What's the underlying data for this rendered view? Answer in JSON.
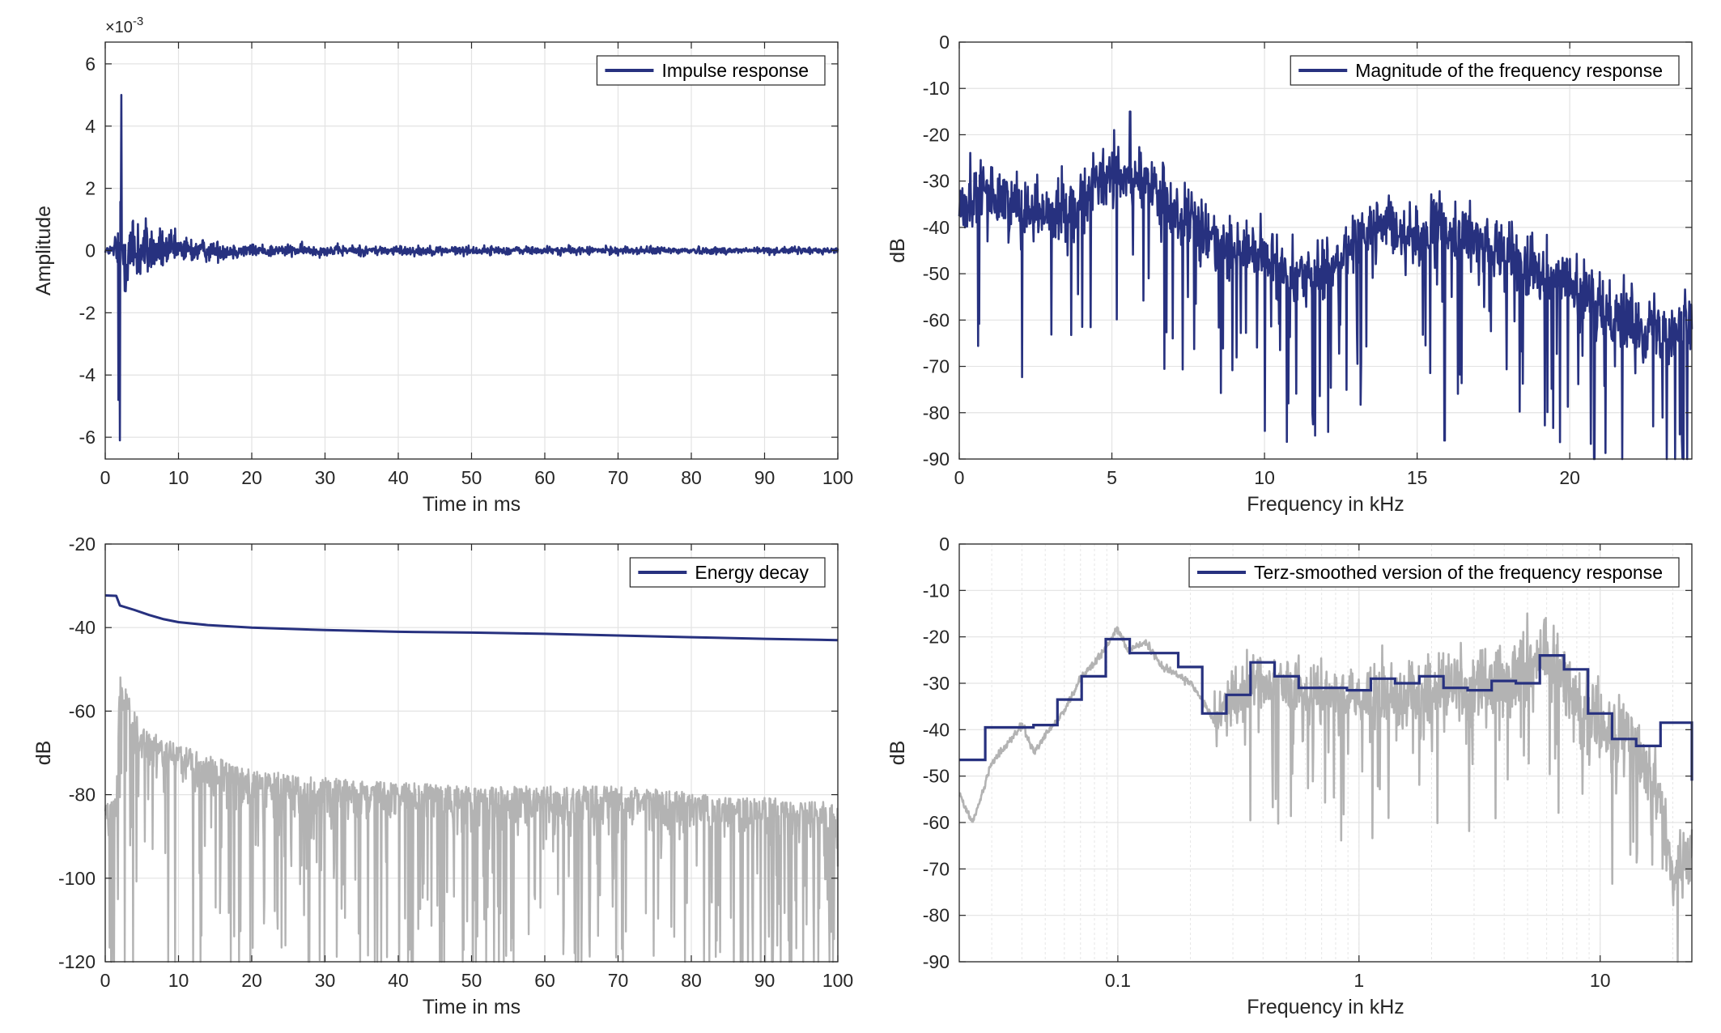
{
  "colors": {
    "series": "#27317f",
    "background_trace": "#b3b3b3",
    "grid": "#e3e3e3",
    "axis": "#262626"
  },
  "chart_data": [
    {
      "id": "impulse",
      "type": "line",
      "xlabel": "Time in ms",
      "ylabel": "Amplitude",
      "exponent_label": "×10",
      "exponent_power": "-3",
      "xlim": [
        0,
        100
      ],
      "ylim": [
        -6.7,
        6.7
      ],
      "xticks": [
        0,
        10,
        20,
        30,
        40,
        50,
        60,
        70,
        80,
        90,
        100
      ],
      "yticks": [
        -6,
        -4,
        -2,
        0,
        2,
        4,
        6
      ],
      "ytick_labels": [
        "-6",
        "-4",
        "-2",
        "0",
        "2",
        "4",
        "6"
      ],
      "grid": true,
      "legend_position": "top-right",
      "series": [
        {
          "name": "Impulse response",
          "style": "noise",
          "envelope_x": [
            0,
            1.0,
            1.5,
            2,
            2.5,
            3,
            4,
            5,
            6,
            8,
            10,
            12,
            15,
            20,
            30,
            50,
            100
          ],
          "envelope_y": [
            0.15,
            0.3,
            1.0,
            5.0,
            2.5,
            2.0,
            1.8,
            1.6,
            1.2,
            0.9,
            0.7,
            0.6,
            0.45,
            0.3,
            0.25,
            0.2,
            0.15
          ],
          "notable_points": [
            {
              "x": 2.2,
              "y": 5.0
            },
            {
              "x": 2.0,
              "y": -6.1
            },
            {
              "x": 1.8,
              "y": -4.8
            }
          ]
        }
      ]
    },
    {
      "id": "magnitude",
      "type": "line",
      "xlabel": "Frequency in kHz",
      "ylabel": "dB",
      "xlim": [
        0,
        24
      ],
      "ylim": [
        -90,
        0
      ],
      "xticks": [
        0,
        5,
        10,
        15,
        20
      ],
      "yticks": [
        -90,
        -80,
        -70,
        -60,
        -50,
        -40,
        -30,
        -20,
        -10,
        0
      ],
      "grid": true,
      "legend_position": "top-right",
      "series": [
        {
          "name": "Magnitude of the frequency response",
          "style": "noise",
          "mean_x": [
            0,
            1,
            2,
            3,
            4,
            5,
            6,
            7,
            8,
            9,
            10,
            11,
            12,
            13,
            14,
            15,
            16,
            17,
            18,
            19,
            20,
            21,
            22,
            23,
            24
          ],
          "mean_y": [
            -35,
            -33,
            -35,
            -37,
            -34,
            -28,
            -30,
            -36,
            -42,
            -44,
            -47,
            -50,
            -50,
            -42,
            -40,
            -42,
            -40,
            -43,
            -47,
            -48,
            -52,
            -58,
            -60,
            -62,
            -61
          ],
          "notable_points": [
            {
              "x": 5.6,
              "y": -15
            },
            {
              "x": 15.9,
              "y": -86
            },
            {
              "x": 20.8,
              "y": -90
            }
          ]
        }
      ]
    },
    {
      "id": "energy",
      "type": "line",
      "xlabel": "Time in ms",
      "ylabel": "dB",
      "xlim": [
        0,
        100
      ],
      "ylim": [
        -120,
        -20
      ],
      "xticks": [
        0,
        10,
        20,
        30,
        40,
        50,
        60,
        70,
        80,
        90,
        100
      ],
      "yticks": [
        -120,
        -100,
        -80,
        -60,
        -40,
        -20
      ],
      "grid": true,
      "legend_position": "top-right",
      "series": [
        {
          "name": "Energy decay",
          "x": [
            0,
            1.5,
            2,
            4,
            6,
            8,
            10,
            14,
            20,
            30,
            40,
            50,
            60,
            70,
            80,
            90,
            100
          ],
          "y": [
            -32.3,
            -32.4,
            -34.7,
            -35.8,
            -37.0,
            -38.0,
            -38.7,
            -39.4,
            -40.0,
            -40.6,
            -41.0,
            -41.2,
            -41.5,
            -41.9,
            -42.3,
            -42.7,
            -43.0
          ]
        },
        {
          "role": "background",
          "style": "noise",
          "envelope_x": [
            0,
            1.5,
            2,
            5,
            10,
            20,
            30,
            50,
            70,
            100
          ],
          "envelope_y": [
            -76,
            -75,
            -45,
            -58,
            -62,
            -68,
            -70,
            -72,
            -72,
            -76
          ]
        }
      ]
    },
    {
      "id": "terz",
      "type": "line",
      "xlabel": "Frequency in kHz",
      "ylabel": "dB",
      "xscale": "log",
      "xlim": [
        0.022,
        24
      ],
      "ylim": [
        -90,
        0
      ],
      "xticks": [
        0.1,
        1,
        10
      ],
      "xtick_labels": [
        "0.1",
        "1",
        "10"
      ],
      "yticks": [
        -90,
        -80,
        -70,
        -60,
        -50,
        -40,
        -30,
        -20,
        -10,
        0
      ],
      "grid": true,
      "legend_position": "top-right",
      "series": [
        {
          "name": "Terz-smoothed version of the frequency response",
          "style": "step",
          "band_edges": [
            0.022,
            0.0282,
            0.0447,
            0.0562,
            0.0708,
            0.0891,
            0.112,
            0.141,
            0.178,
            0.224,
            0.282,
            0.355,
            0.447,
            0.562,
            0.708,
            0.891,
            1.12,
            1.41,
            1.78,
            2.24,
            2.82,
            3.55,
            4.47,
            5.62,
            7.08,
            8.91,
            11.2,
            14.1,
            17.8,
            24
          ],
          "values": [
            -46.5,
            -39.5,
            -39,
            -33.5,
            -28.5,
            -20.5,
            -23.5,
            -23.5,
            -26.5,
            -36.5,
            -32.5,
            -25.5,
            -28.5,
            -31,
            -31,
            -31.5,
            -29,
            -30,
            -28.5,
            -31,
            -31.5,
            -29.5,
            -30,
            -24,
            -27,
            -36.5,
            -42,
            -43.5,
            -38.5,
            -51
          ]
        },
        {
          "role": "background",
          "style": "log-noise",
          "mean_x": [
            0.022,
            0.025,
            0.03,
            0.04,
            0.045,
            0.05,
            0.06,
            0.07,
            0.09,
            0.1,
            0.11,
            0.13,
            0.15,
            0.2,
            0.25,
            0.3,
            0.4,
            0.6,
            1,
            2,
            3,
            4,
            5,
            6,
            8,
            10,
            14,
            17,
            20,
            24
          ],
          "mean_y": [
            -54,
            -60,
            -47,
            -39,
            -45,
            -41,
            -36,
            -29,
            -22,
            -18,
            -23,
            -21,
            -26,
            -30,
            -38,
            -33,
            -29,
            -32,
            -33,
            -31,
            -31,
            -30,
            -25,
            -23,
            -33,
            -40,
            -44,
            -52,
            -70,
            -67
          ]
        }
      ]
    }
  ]
}
